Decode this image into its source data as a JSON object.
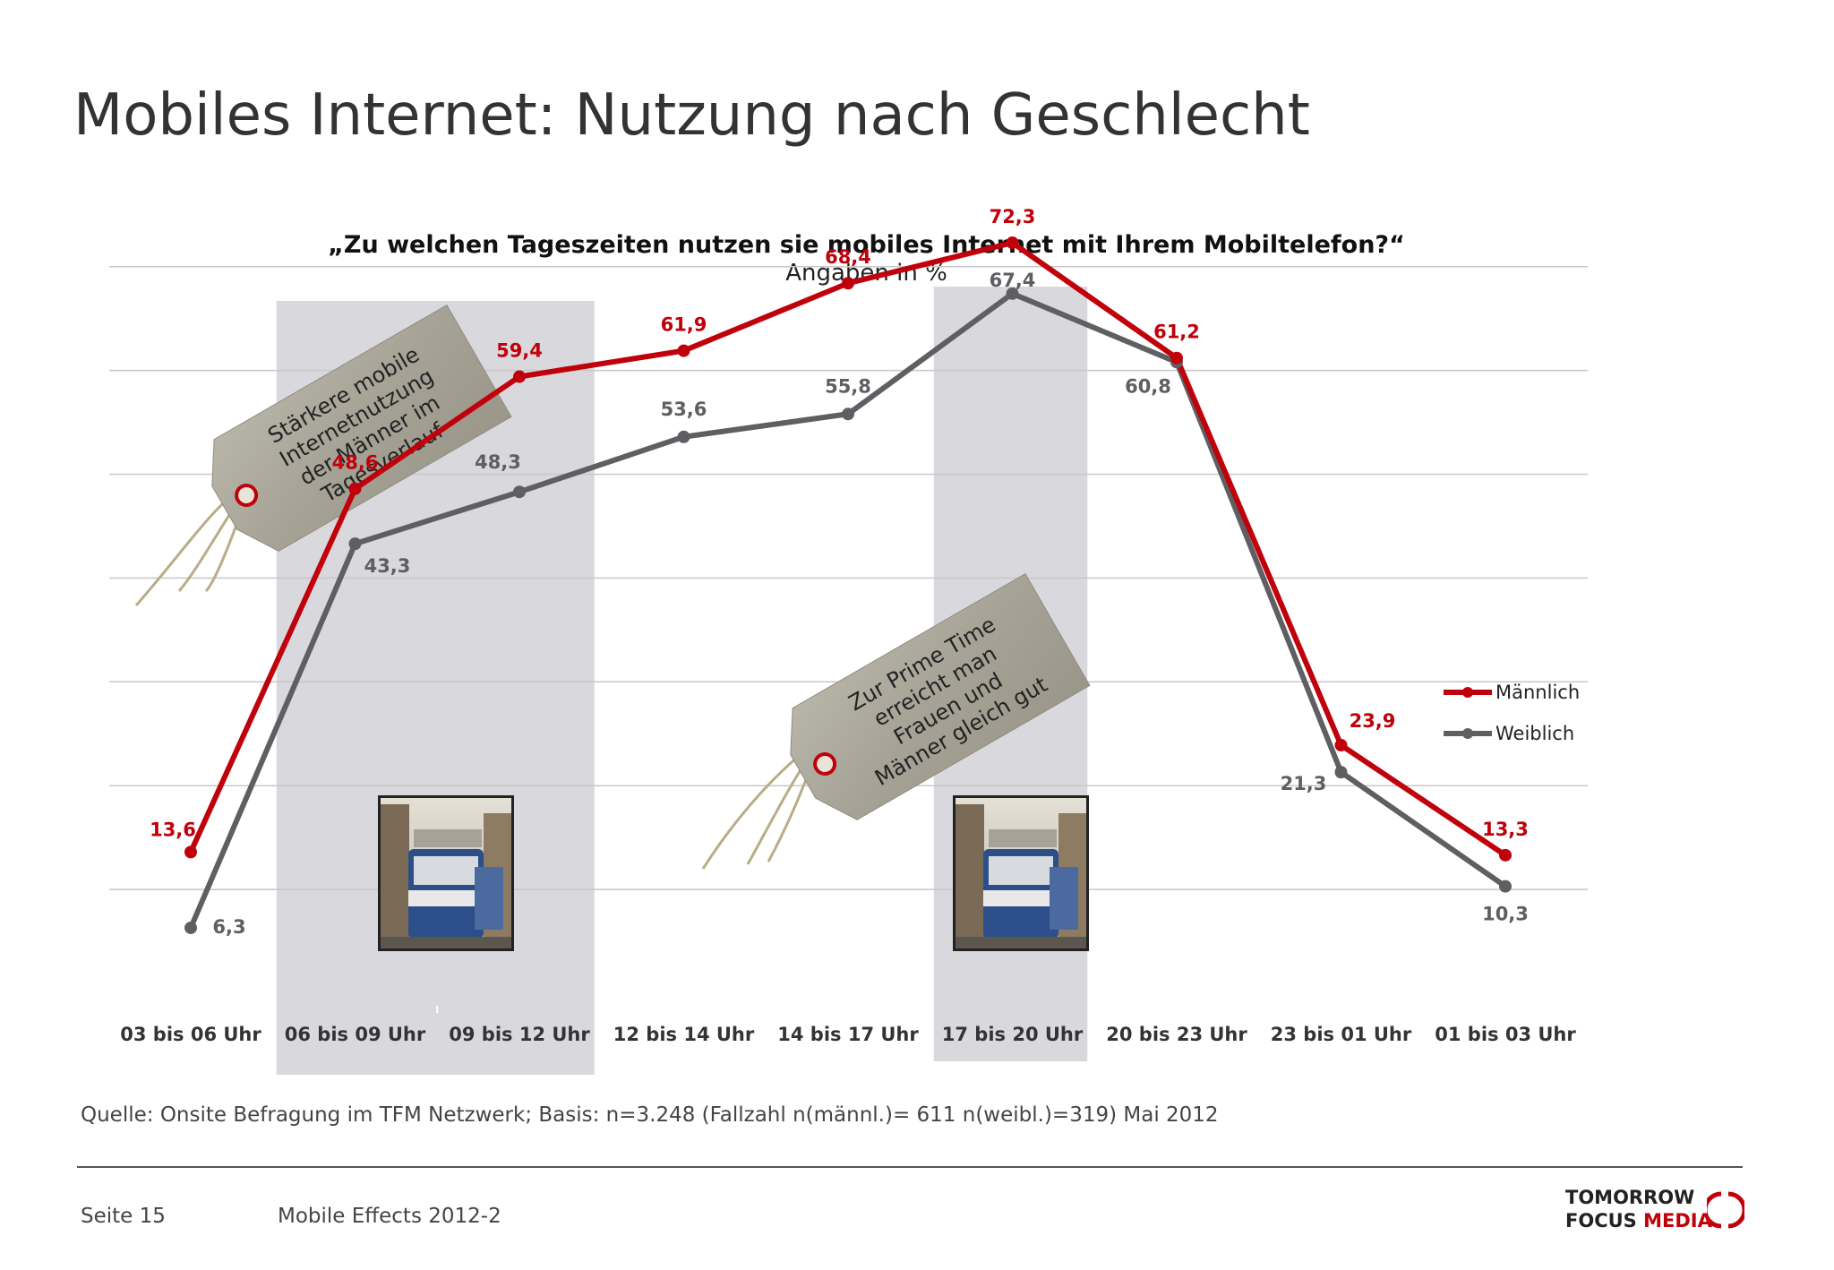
{
  "page": {
    "title": "Mobiles Internet: Nutzung nach Geschlecht",
    "question": "„Zu welchen Tageszeiten nutzen sie mobiles Internet mit Ihrem Mobiltelefon?“",
    "unit": "Angaben in %",
    "source": "Quelle: Onsite Befragung im TFM Netzwerk; Basis: n=3.248 (Fallzahl n(männl.)= 611 n(weibl.)=319) Mai 2012",
    "page_number": "Seite 15",
    "report_name": "Mobile Effects 2012-2"
  },
  "logo": {
    "line1": "TOMORROW",
    "line2a": "FOCUS ",
    "line2b": "MEDIA"
  },
  "tags": {
    "tag1_lines": [
      "Stärkere mobile",
      "Internetnutzung",
      "der Männer im",
      "Tagesverlauf"
    ],
    "tag2_lines": [
      "Zur Prime Time",
      "erreicht man",
      "Frauen und",
      "Männer gleich gut"
    ]
  },
  "colors": {
    "male": "#c0000a",
    "female": "#5f5f63",
    "highlight_band": "#d9d8dc",
    "tag": "#a9a69a"
  },
  "chart_data": {
    "type": "line",
    "categories": [
      "03 bis 06 Uhr",
      "06 bis 09 Uhr",
      "09 bis 12 Uhr",
      "12 bis 14 Uhr",
      "14 bis 17 Uhr",
      "17 bis 20 Uhr",
      "20 bis 23 Uhr",
      "23 bis 01 Uhr",
      "01 bis 03 Uhr"
    ],
    "series": [
      {
        "name": "Männlich",
        "color": "#c0000a",
        "values": [
          13.6,
          48.6,
          59.4,
          61.9,
          68.4,
          72.3,
          61.2,
          23.9,
          13.3
        ],
        "labels": [
          "13,6",
          "48,6",
          "59,4",
          "61,9",
          "68,4",
          "72,3",
          "61,2",
          "23,9",
          "13,3"
        ]
      },
      {
        "name": "Weiblich",
        "color": "#5f5f63",
        "values": [
          6.3,
          43.3,
          48.3,
          53.6,
          55.8,
          67.4,
          60.8,
          21.3,
          10.3
        ],
        "labels": [
          "6,3",
          "43,3",
          "48,3",
          "53,6",
          "55,8",
          "67,4",
          "60,8",
          "21,3",
          "10,3"
        ]
      }
    ],
    "highlighted_categories": [
      "06 bis 09 Uhr",
      "09 bis 12 Uhr",
      "17 bis 20 Uhr"
    ],
    "ylim": [
      0,
      80
    ],
    "grid": true,
    "legend_position": "right"
  }
}
